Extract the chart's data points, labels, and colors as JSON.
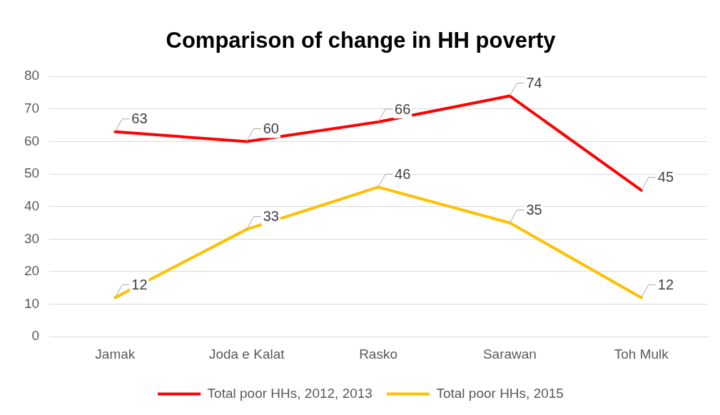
{
  "chart_data": {
    "type": "line",
    "title": "Comparison of change in HH poverty",
    "categories": [
      "Jamak",
      "Joda e Kalat",
      "Rasko",
      "Sarawan",
      "Toh Mulk"
    ],
    "series": [
      {
        "name": "Total poor HHs, 2012, 2013",
        "color": "#ff0000",
        "values": [
          63,
          60,
          66,
          74,
          45
        ]
      },
      {
        "name": "Total poor HHs, 2015",
        "color": "#ffc000",
        "values": [
          12,
          33,
          46,
          35,
          12
        ]
      }
    ],
    "ylim": [
      0,
      80
    ],
    "yticks": [
      0,
      10,
      20,
      30,
      40,
      50,
      60,
      70,
      80
    ],
    "grid": "y",
    "legend": "bottom",
    "marker": "none",
    "line_style": "solid",
    "data_labels": true
  }
}
